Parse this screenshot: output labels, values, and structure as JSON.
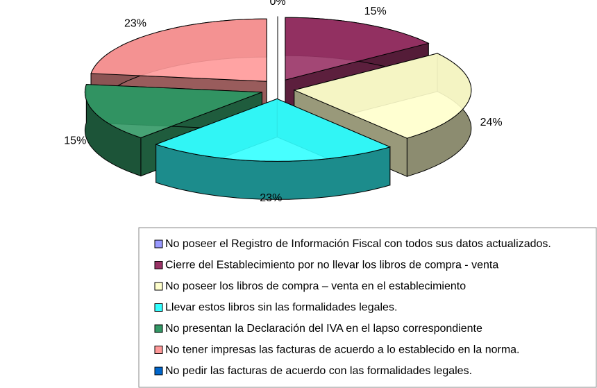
{
  "chart_data": {
    "type": "pie3d",
    "categories": [
      "No poseer el Registro de Información Fiscal con todos sus datos actualizados.",
      "Cierre del Establecimiento por no llevar los libros de compra - venta",
      "No poseer los libros de compra – venta en el establecimiento",
      "Llevar estos libros sin las formalidades legales.",
      "No presentan la Declaración del IVA en el lapso correspondiente",
      "No tener impresas las facturas de acuerdo a lo establecido en la norma.",
      "No pedir las facturas de acuerdo con las formalidades legales."
    ],
    "values": [
      0,
      15,
      24,
      23,
      15,
      23,
      0
    ],
    "value_labels": [
      "0%",
      "15%",
      "24%",
      "23%",
      "15%",
      "23%",
      null
    ],
    "colors": [
      "#9999ff",
      "#993366",
      "#ffffcc",
      "#33ffff",
      "#339966",
      "#ff9999",
      "#0066cc"
    ],
    "legend": "bottom"
  }
}
